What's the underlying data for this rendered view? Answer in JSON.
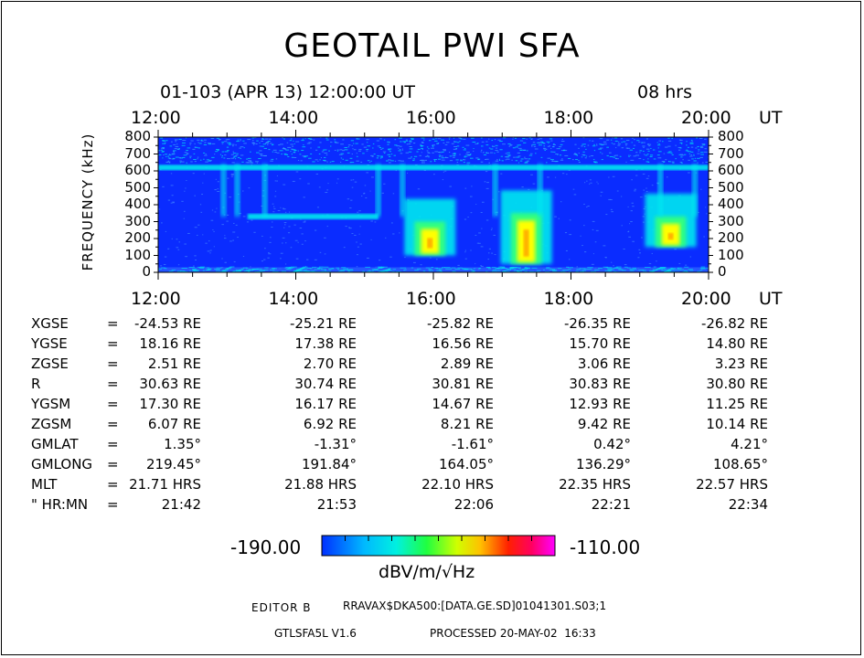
{
  "header": {
    "title": "GEOTAIL PWI SFA",
    "subtitle_left": "01-103 (APR 13) 12:00:00 UT",
    "subtitle_right": "08 hrs"
  },
  "chart_data": {
    "type": "heatmap",
    "title": "GEOTAIL PWI SFA",
    "ylabel": "FREQUENCY (kHz)",
    "xlabel": "UT",
    "xunit": "UT",
    "x_ticks": [
      "12:00",
      "14:00",
      "16:00",
      "18:00",
      "20:00"
    ],
    "x_range_hours": [
      12,
      20
    ],
    "y_ticks": [
      "800",
      "700",
      "600",
      "500",
      "400",
      "300",
      "200",
      "100",
      "0"
    ],
    "y_values": [
      800,
      700,
      600,
      500,
      400,
      300,
      200,
      100,
      0
    ],
    "ylim": [
      0,
      800
    ],
    "colorbar": {
      "min": "-190.00",
      "max": "-110.00",
      "unit": "dBV/m/√Hz"
    },
    "colors": {
      "background": "#0a2cff",
      "low": "#2a60ff",
      "cyan": "#00e8f0",
      "green": "#30ff80",
      "yellow": "#ffff00",
      "orange": "#ffa000",
      "red": "#ff0000",
      "magenta": "#ff00ff"
    },
    "features": [
      {
        "kind": "band",
        "freq_khz": 620,
        "from_h": 12.0,
        "to_h": 20.0
      },
      {
        "kind": "band",
        "freq_khz": 330,
        "from_h": 13.3,
        "to_h": 15.2
      },
      {
        "kind": "burst",
        "center_h": 15.95,
        "freq_khz": [
          100,
          300
        ]
      },
      {
        "kind": "burst",
        "center_h": 17.35,
        "freq_khz": [
          50,
          350
        ]
      },
      {
        "kind": "burst",
        "center_h": 19.45,
        "freq_khz": [
          150,
          330
        ]
      }
    ]
  },
  "ephemeris": {
    "rows": [
      {
        "label": "XGSE",
        "eq": "=",
        "values": [
          "-24.53 RE",
          "-25.21 RE",
          "-25.82 RE",
          "-26.35 RE",
          "-26.82 RE"
        ]
      },
      {
        "label": "YGSE",
        "eq": "=",
        "values": [
          "18.16 RE",
          "17.38 RE",
          "16.56 RE",
          "15.70 RE",
          "14.80 RE"
        ]
      },
      {
        "label": "ZGSE",
        "eq": "=",
        "values": [
          "2.51 RE",
          "2.70 RE",
          "2.89 RE",
          "3.06 RE",
          "3.23 RE"
        ]
      },
      {
        "label": "R",
        "eq": "=",
        "values": [
          "30.63 RE",
          "30.74 RE",
          "30.81 RE",
          "30.83 RE",
          "30.80 RE"
        ]
      },
      {
        "label": "YGSM",
        "eq": "=",
        "values": [
          "17.30 RE",
          "16.17 RE",
          "14.67 RE",
          "12.93 RE",
          "11.25 RE"
        ]
      },
      {
        "label": "ZGSM",
        "eq": "=",
        "values": [
          "6.07 RE",
          "6.92 RE",
          "8.21 RE",
          "9.42 RE",
          "10.14 RE"
        ]
      },
      {
        "label": "GMLAT",
        "eq": "=",
        "values": [
          "1.35°",
          "-1.31°",
          "-1.61°",
          "0.42°",
          "4.21°"
        ]
      },
      {
        "label": "GMLONG",
        "eq": "=",
        "values": [
          "219.45°",
          "191.84°",
          "164.05°",
          "136.29°",
          "108.65°"
        ]
      },
      {
        "label": "MLT",
        "eq": "=",
        "values": [
          "21.71 HRS",
          "21.88 HRS",
          "22.10 HRS",
          "22.35 HRS",
          "22.57 HRS"
        ]
      },
      {
        "label": "\" HR:MN",
        "eq": "=",
        "values": [
          "21:42",
          "21:53",
          "22:06",
          "22:21",
          "22:34"
        ]
      }
    ]
  },
  "footer": {
    "editor_label": "EDITOR B",
    "editor_path": "RRAVAX$DKA500:[DATA.GE.SD]01041301.S03;1",
    "version": "GTLSFA5L V1.6",
    "processed": "PROCESSED 20-MAY-02  16:33"
  }
}
